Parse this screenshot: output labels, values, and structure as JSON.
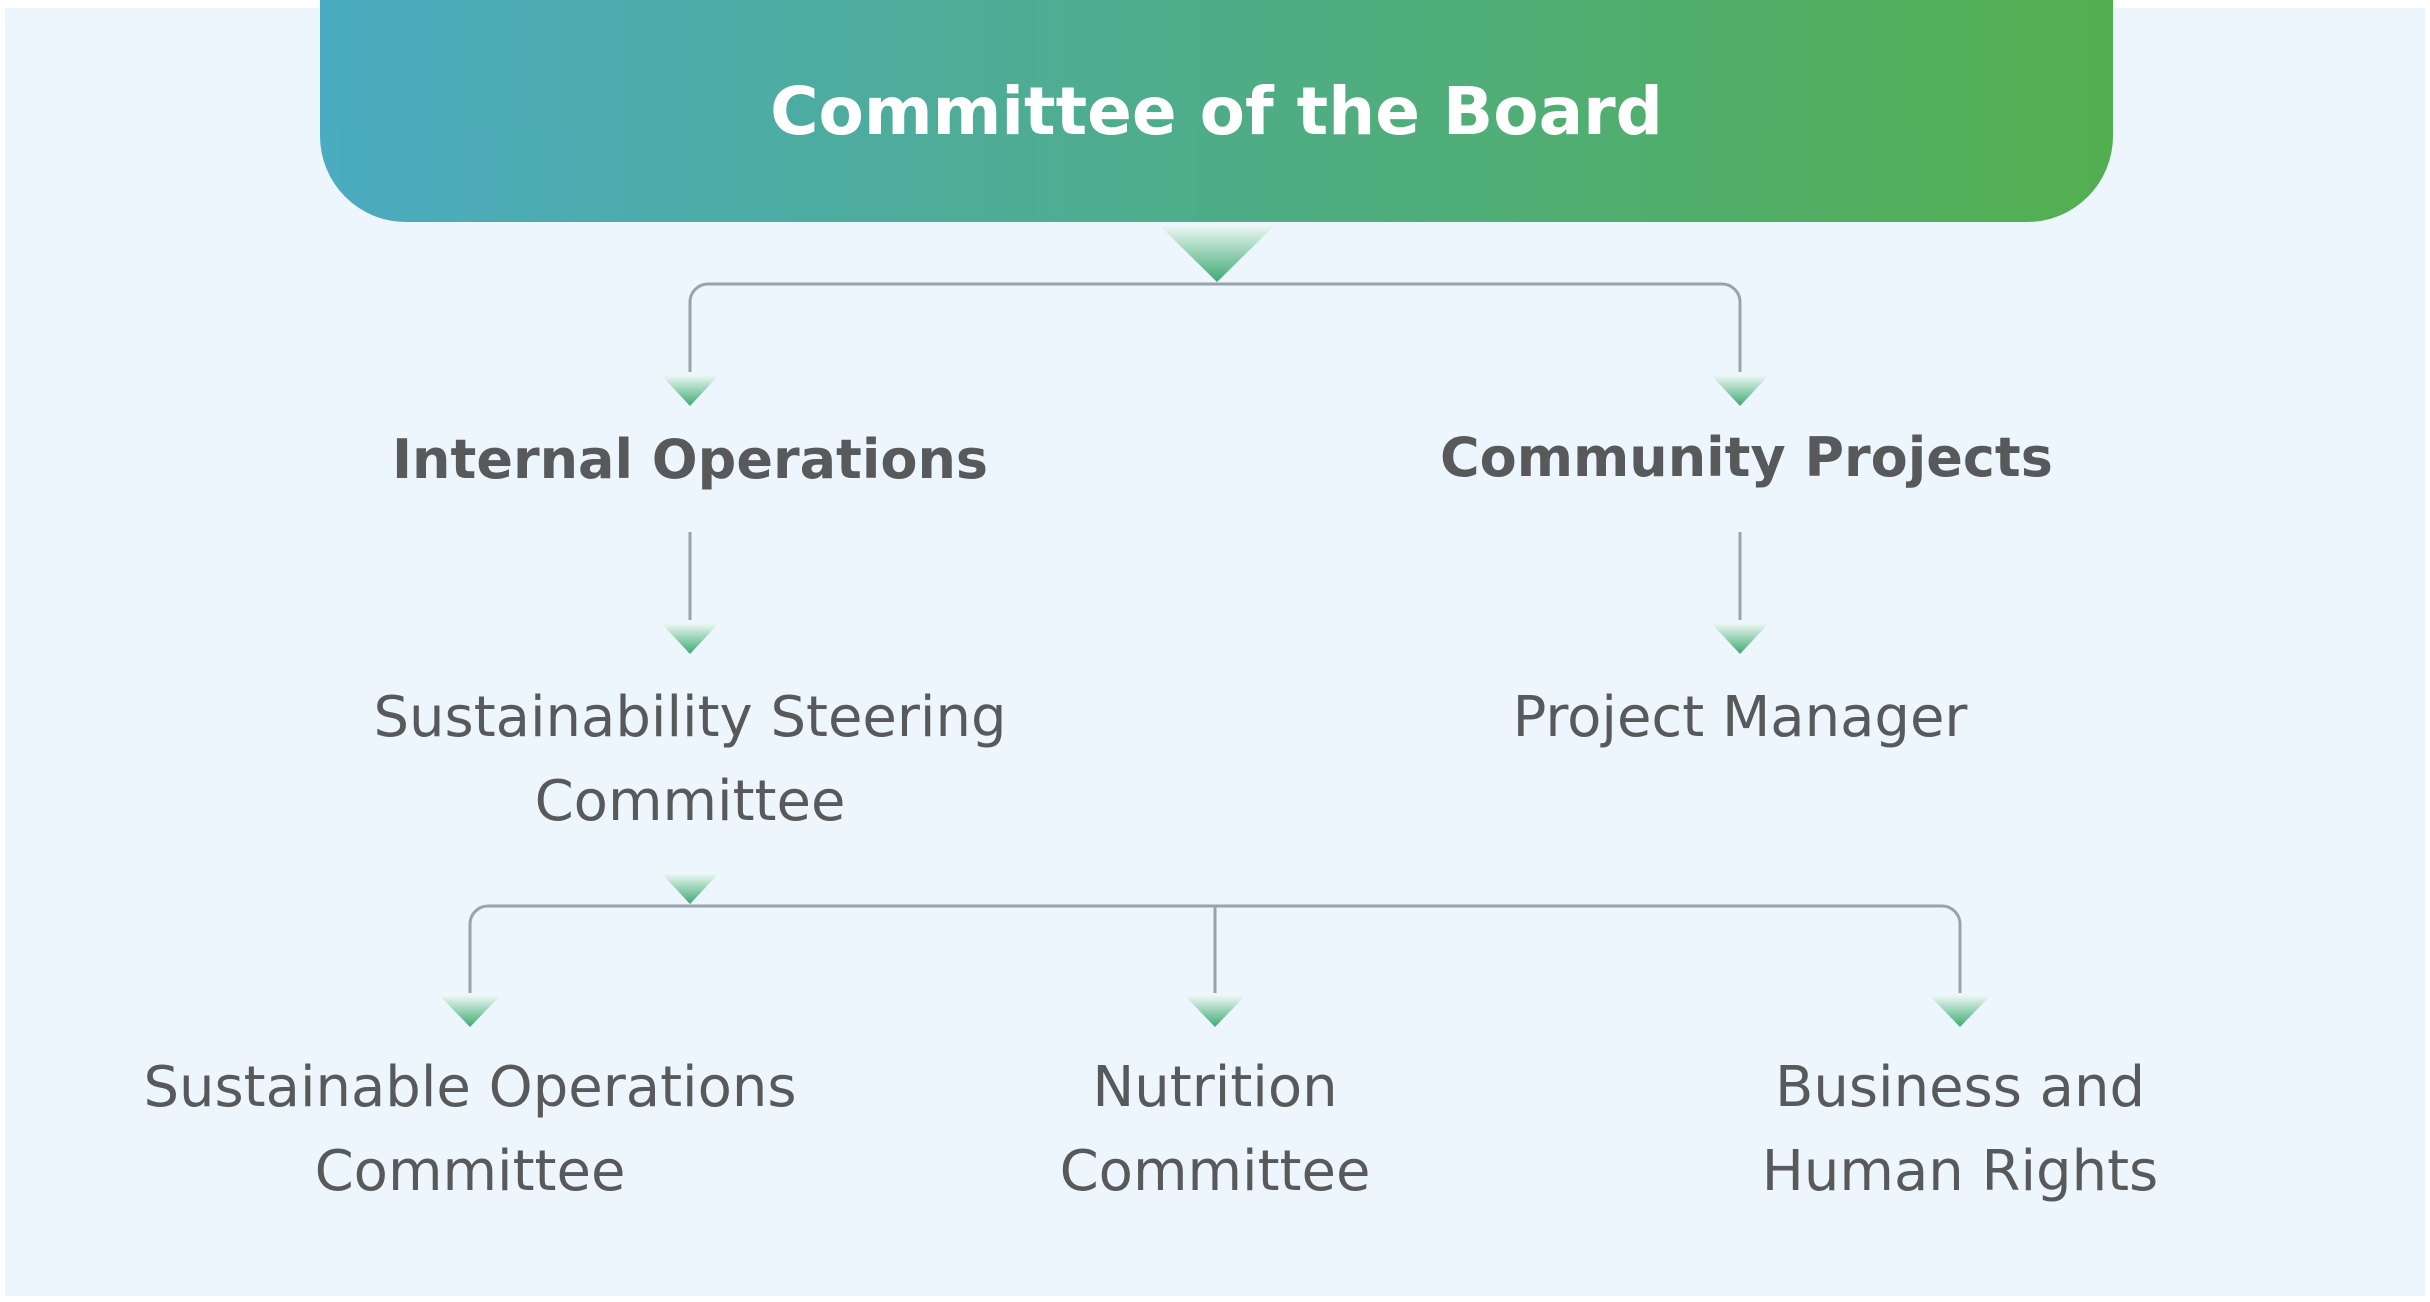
{
  "colors": {
    "background": "#ecf6fc",
    "header_gradient_start": "#4babc0",
    "header_gradient_end": "#52af50",
    "connector": "#9aa3ab",
    "arrow_top": "#eaf6f3",
    "arrow_bottom": "#3eaa72",
    "node_text": "#58595b",
    "header_text": "#ffffff"
  },
  "header": {
    "title": "Committee of the Board"
  },
  "branches": [
    {
      "label": "Internal Operations",
      "child": {
        "line1": "Sustainability Steering",
        "line2": "Committee"
      }
    },
    {
      "label": "Community Projects",
      "child": {
        "line1": "Project Manager"
      }
    }
  ],
  "sub_committees": [
    {
      "line1": "Sustainable Operations",
      "line2": "Committee"
    },
    {
      "line1": "Nutrition",
      "line2": "Committee"
    },
    {
      "line1": "Business and",
      "line2": "Human Rights"
    }
  ]
}
